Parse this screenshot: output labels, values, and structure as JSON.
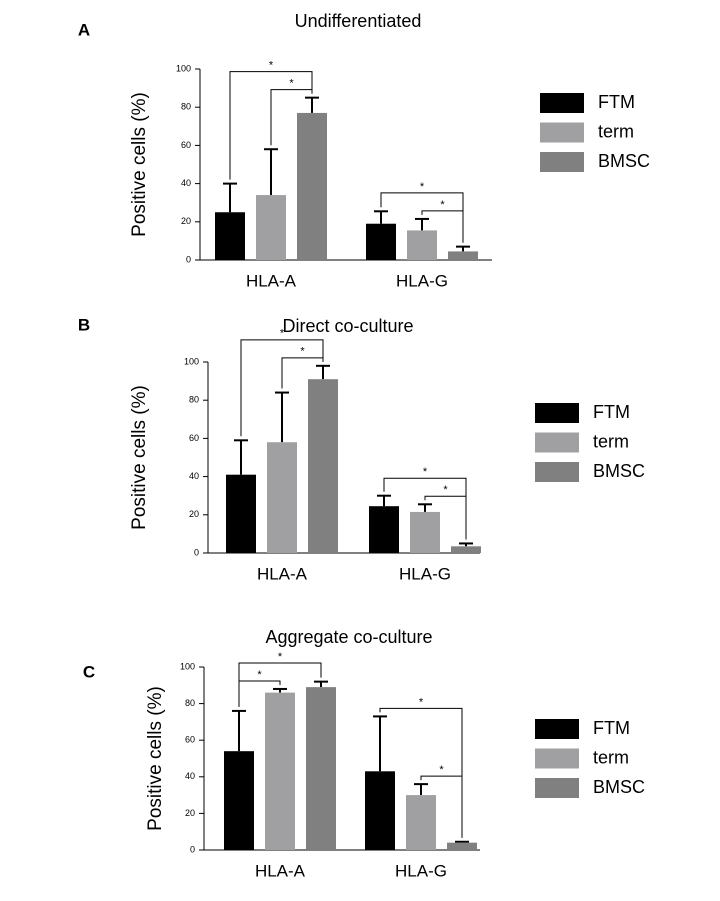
{
  "chart_data": [
    {
      "type": "bar",
      "panel": "A",
      "title": "Undifferentiated",
      "y_label": "Positive cells (%)",
      "categories": [
        "HLA-A",
        "HLA-G"
      ],
      "series": [
        {
          "name": "FTM",
          "color": "#000000",
          "values": [
            25,
            19
          ],
          "errors": [
            15,
            6.5
          ]
        },
        {
          "name": "term",
          "color": "#a0a0a2",
          "values": [
            34,
            15.5
          ],
          "errors": [
            24,
            6
          ]
        },
        {
          "name": "BMSC",
          "color": "#808080",
          "values": [
            77,
            4.5
          ],
          "errors": [
            8,
            2.5
          ]
        }
      ],
      "comparisons": [
        {
          "category": 0,
          "between": [
            1,
            2
          ],
          "label": "*"
        },
        {
          "category": 0,
          "between": [
            0,
            2
          ],
          "label": "*"
        },
        {
          "category": 1,
          "between": [
            1,
            2
          ],
          "label": "*"
        },
        {
          "category": 1,
          "between": [
            0,
            2
          ],
          "label": "*"
        }
      ],
      "ylim": [
        0,
        100
      ],
      "yticks": [
        0,
        20,
        40,
        60,
        80,
        100
      ]
    },
    {
      "type": "bar",
      "panel": "B",
      "title": "Direct co-culture",
      "y_label": "Positive cells (%)",
      "categories": [
        "HLA-A",
        "HLA-G"
      ],
      "series": [
        {
          "name": "FTM",
          "color": "#000000",
          "values": [
            41,
            24.5
          ],
          "errors": [
            18,
            5.5
          ]
        },
        {
          "name": "term",
          "color": "#a0a0a2",
          "values": [
            58,
            21.5
          ],
          "errors": [
            26,
            4
          ]
        },
        {
          "name": "BMSC",
          "color": "#808080",
          "values": [
            91,
            3.5
          ],
          "errors": [
            7,
            1.5
          ]
        }
      ],
      "comparisons": [
        {
          "category": 0,
          "between": [
            1,
            2
          ],
          "label": "*"
        },
        {
          "category": 0,
          "between": [
            0,
            2
          ],
          "label": "*"
        },
        {
          "category": 1,
          "between": [
            1,
            2
          ],
          "label": "*"
        },
        {
          "category": 1,
          "between": [
            0,
            2
          ],
          "label": "*"
        }
      ],
      "ylim": [
        0,
        100
      ],
      "yticks": [
        0,
        20,
        40,
        60,
        80,
        100
      ]
    },
    {
      "type": "bar",
      "panel": "C",
      "title": "Aggregate co-culture",
      "y_label": "Positive cells (%)",
      "categories": [
        "HLA-A",
        "HLA-G"
      ],
      "series": [
        {
          "name": "FTM",
          "color": "#000000",
          "values": [
            54,
            43
          ],
          "errors": [
            22,
            30
          ]
        },
        {
          "name": "term",
          "color": "#a0a0a2",
          "values": [
            86,
            30
          ],
          "errors": [
            2,
            6
          ]
        },
        {
          "name": "BMSC",
          "color": "#808080",
          "values": [
            89,
            4
          ],
          "errors": [
            3,
            0.5
          ]
        }
      ],
      "comparisons": [
        {
          "category": 0,
          "between": [
            0,
            1
          ],
          "label": "*"
        },
        {
          "category": 0,
          "between": [
            0,
            2
          ],
          "label": "*"
        },
        {
          "category": 1,
          "between": [
            1,
            2
          ],
          "label": "*"
        },
        {
          "category": 1,
          "between": [
            0,
            2
          ],
          "label": "*"
        }
      ],
      "ylim": [
        0,
        100
      ],
      "yticks": [
        0,
        20,
        40,
        60,
        80,
        100
      ]
    }
  ]
}
